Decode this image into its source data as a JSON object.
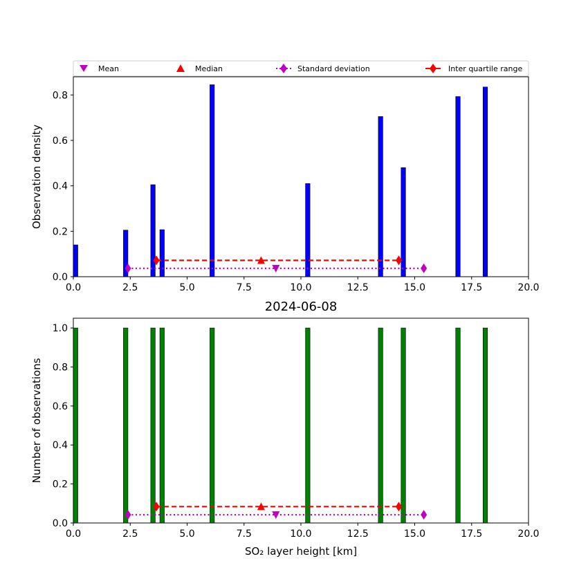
{
  "title": "2024-06-08",
  "legend": {
    "mean": "Mean",
    "median": "Median",
    "std": "Standard deviation",
    "iqr": "Inter quartile range"
  },
  "colors": {
    "density_bars": "#0000ff",
    "count_bars": "#008000",
    "mean_marker": "#bf00bf",
    "median_marker": "#ff0000",
    "std_line": "#bf00bf",
    "iqr_line": "#ff0000"
  },
  "chart_data": [
    {
      "type": "bar",
      "ylabel": "Observation density",
      "xlim": [
        0,
        20
      ],
      "ylim": [
        0,
        0.88
      ],
      "xticks": [
        "0.0",
        "2.5",
        "5.0",
        "7.5",
        "10.0",
        "12.5",
        "15.0",
        "17.5",
        "20.0"
      ],
      "yticks": [
        "0.0",
        "0.2",
        "0.4",
        "0.6",
        "0.8"
      ],
      "x": [
        0.1,
        2.3,
        3.5,
        3.9,
        6.1,
        10.3,
        13.5,
        14.5,
        16.9,
        18.1
      ],
      "values": [
        0.14,
        0.205,
        0.405,
        0.207,
        0.845,
        0.41,
        0.705,
        0.48,
        0.793,
        0.835
      ],
      "stats": {
        "mean": 8.9,
        "median": 8.25,
        "std_range": [
          2.4,
          15.4
        ],
        "iqr_range": [
          3.65,
          14.3
        ],
        "std_y": 0.037,
        "iqr_y": 0.072
      },
      "legend_position": "top (above plot)"
    },
    {
      "type": "bar",
      "ylabel": "Number of observations",
      "xlabel": "SO₂ layer height [km]",
      "xlim": [
        0,
        20
      ],
      "ylim": [
        0,
        1.05
      ],
      "xticks": [
        "0.0",
        "2.5",
        "5.0",
        "7.5",
        "10.0",
        "12.5",
        "15.0",
        "17.5",
        "20.0"
      ],
      "yticks": [
        "0.0",
        "0.2",
        "0.4",
        "0.6",
        "0.8",
        "1.0"
      ],
      "x": [
        0.1,
        2.3,
        3.5,
        3.9,
        6.1,
        10.3,
        13.5,
        14.5,
        16.9,
        18.1
      ],
      "values": [
        1,
        1,
        1,
        1,
        1,
        1,
        1,
        1,
        1,
        1
      ],
      "stats": {
        "mean": 8.9,
        "median": 8.25,
        "std_range": [
          2.4,
          15.4
        ],
        "iqr_range": [
          3.65,
          14.3
        ],
        "std_y": 0.042,
        "iqr_y": 0.084
      }
    }
  ]
}
